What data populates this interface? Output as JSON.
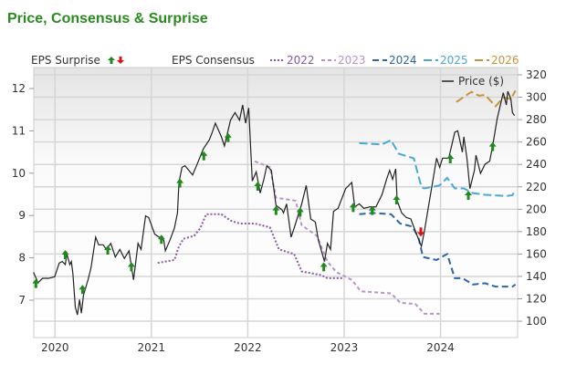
{
  "title": "Price, Consensus & Surprise",
  "chart_data": {
    "type": "line",
    "title": "Price, Consensus & Surprise",
    "legend": {
      "surprise_label": "EPS Surprise",
      "consensus_label": "EPS Consensus",
      "price_label": "Price ($)",
      "placement": "top"
    },
    "x_ticks": [
      "2020",
      "2021",
      "2022",
      "2023",
      "2024"
    ],
    "xlim": [
      2019.78,
      2024.8
    ],
    "left_axis": {
      "label": "",
      "ticks": [
        7,
        8,
        9,
        10,
        11,
        12
      ],
      "ylim": [
        6.35,
        12.5
      ]
    },
    "right_axis": {
      "label": "",
      "ticks": [
        100,
        120,
        140,
        160,
        180,
        200,
        220,
        240,
        260,
        280,
        300,
        320
      ],
      "ylim": [
        92,
        322
      ]
    },
    "grid": true,
    "price": {
      "name": "Price ($)",
      "color": "#222222",
      "points": [
        [
          2019.777,
          143.7
        ],
        [
          2019.824,
          134.3
        ],
        [
          2019.871,
          138.3
        ],
        [
          2019.934,
          138.3
        ],
        [
          2019.997,
          139.7
        ],
        [
          2020.044,
          151.9
        ],
        [
          2020.076,
          153.3
        ],
        [
          2020.107,
          150.5
        ],
        [
          2020.123,
          160.0
        ],
        [
          2020.154,
          150.5
        ],
        [
          2020.17,
          153.3
        ],
        [
          2020.186,
          142.4
        ],
        [
          2020.211,
          112.5
        ],
        [
          2020.233,
          105.7
        ],
        [
          2020.255,
          119.3
        ],
        [
          2020.274,
          107.1
        ],
        [
          2020.296,
          123.4
        ],
        [
          2020.343,
          137.0
        ],
        [
          2020.374,
          147.8
        ],
        [
          2020.422,
          175.0
        ],
        [
          2020.453,
          168.2
        ],
        [
          2020.5,
          168.2
        ],
        [
          2020.532,
          164.1
        ],
        [
          2020.579,
          169.5
        ],
        [
          2020.626,
          157.3
        ],
        [
          2020.673,
          164.1
        ],
        [
          2020.72,
          156.0
        ],
        [
          2020.768,
          162.8
        ],
        [
          2020.815,
          137.0
        ],
        [
          2020.862,
          169.5
        ],
        [
          2020.893,
          164.1
        ],
        [
          2020.94,
          194.0
        ],
        [
          2020.972,
          192.6
        ],
        [
          2021.035,
          177.7
        ],
        [
          2021.082,
          175.0
        ],
        [
          2021.129,
          172.3
        ],
        [
          2021.145,
          162.8
        ],
        [
          2021.192,
          172.3
        ],
        [
          2021.239,
          183.1
        ],
        [
          2021.271,
          196.7
        ],
        [
          2021.286,
          223.9
        ],
        [
          2021.318,
          237.4
        ],
        [
          2021.349,
          238.8
        ],
        [
          2021.428,
          230.6
        ],
        [
          2021.475,
          240.2
        ],
        [
          2021.538,
          253.7
        ],
        [
          2021.601,
          261.9
        ],
        [
          2021.632,
          268.7
        ],
        [
          2021.664,
          276.8
        ],
        [
          2021.727,
          264.6
        ],
        [
          2021.758,
          256.4
        ],
        [
          2021.821,
          279.5
        ],
        [
          2021.868,
          286.3
        ],
        [
          2021.915,
          279.5
        ],
        [
          2021.947,
          293.1
        ],
        [
          2021.978,
          276.8
        ],
        [
          2022.01,
          290.4
        ],
        [
          2022.047,
          225.2
        ],
        [
          2022.088,
          233.4
        ],
        [
          2022.129,
          214.4
        ],
        [
          2022.167,
          226.6
        ],
        [
          2022.198,
          238.8
        ],
        [
          2022.245,
          234.7
        ],
        [
          2022.293,
          203.5
        ],
        [
          2022.355,
          199.4
        ],
        [
          2022.371,
          196.7
        ],
        [
          2022.403,
          204.8
        ],
        [
          2022.45,
          175.0
        ],
        [
          2022.481,
          183.1
        ],
        [
          2022.56,
          204.8
        ],
        [
          2022.607,
          221.2
        ],
        [
          2022.654,
          191.3
        ],
        [
          2022.701,
          188.6
        ],
        [
          2022.733,
          172.3
        ],
        [
          2022.796,
          153.3
        ],
        [
          2022.827,
          169.5
        ],
        [
          2022.859,
          164.1
        ],
        [
          2022.89,
          198.1
        ],
        [
          2022.937,
          200.8
        ],
        [
          2023.016,
          218.4
        ],
        [
          2023.079,
          223.9
        ],
        [
          2023.11,
          202.1
        ],
        [
          2023.157,
          204.8
        ],
        [
          2023.204,
          200.8
        ],
        [
          2023.267,
          202.1
        ],
        [
          2023.33,
          202.1
        ],
        [
          2023.393,
          213.0
        ],
        [
          2023.44,
          226.6
        ],
        [
          2023.472,
          234.7
        ],
        [
          2023.503,
          226.6
        ],
        [
          2023.535,
          236.1
        ],
        [
          2023.55,
          207.6
        ],
        [
          2023.597,
          196.7
        ],
        [
          2023.645,
          192.6
        ],
        [
          2023.692,
          191.3
        ],
        [
          2023.739,
          180.4
        ],
        [
          2023.802,
          166.8
        ],
        [
          2023.833,
          180.4
        ],
        [
          2023.88,
          204.8
        ],
        [
          2023.928,
          229.3
        ],
        [
          2023.959,
          245.6
        ],
        [
          2023.991,
          237.4
        ],
        [
          2024.022,
          245.6
        ],
        [
          2024.085,
          245.6
        ],
        [
          2024.148,
          268.7
        ],
        [
          2024.179,
          270.0
        ],
        [
          2024.227,
          251.0
        ],
        [
          2024.242,
          264.6
        ],
        [
          2024.274,
          245.6
        ],
        [
          2024.305,
          218.4
        ],
        [
          2024.352,
          234.7
        ],
        [
          2024.368,
          248.3
        ],
        [
          2024.415,
          232.0
        ],
        [
          2024.462,
          240.2
        ],
        [
          2024.51,
          242.9
        ],
        [
          2024.541,
          256.4
        ],
        [
          2024.588,
          280.9
        ],
        [
          2024.651,
          304.0
        ],
        [
          2024.683,
          293.1
        ],
        [
          2024.698,
          305.3
        ],
        [
          2024.73,
          298.5
        ],
        [
          2024.746,
          286.3
        ],
        [
          2024.768,
          283.6
        ]
      ]
    },
    "consensus": [
      {
        "name": "2022",
        "color": "#8a5aa6",
        "dash": "2,2",
        "points": [
          [
            2021.066,
            7.88
          ],
          [
            2021.239,
            7.95
          ],
          [
            2021.286,
            8.27
          ],
          [
            2021.334,
            8.45
          ],
          [
            2021.444,
            8.52
          ],
          [
            2021.507,
            8.7
          ],
          [
            2021.569,
            9.03
          ],
          [
            2021.727,
            9.03
          ],
          [
            2021.821,
            8.88
          ],
          [
            2021.915,
            8.81
          ],
          [
            2022.073,
            8.81
          ],
          [
            2022.23,
            8.72
          ],
          [
            2022.324,
            8.2
          ],
          [
            2022.481,
            8.09
          ],
          [
            2022.56,
            7.68
          ],
          [
            2022.764,
            7.59
          ],
          [
            2022.827,
            7.52
          ],
          [
            2022.985,
            7.52
          ]
        ]
      },
      {
        "name": "2023",
        "color": "#b893c9",
        "dash": "4,3",
        "points": [
          [
            2022.073,
            10.28
          ],
          [
            2022.23,
            10.14
          ],
          [
            2022.293,
            9.42
          ],
          [
            2022.497,
            9.35
          ],
          [
            2022.56,
            8.77
          ],
          [
            2022.717,
            8.52
          ],
          [
            2022.827,
            7.91
          ],
          [
            2022.922,
            7.66
          ],
          [
            2023.079,
            7.48
          ],
          [
            2023.173,
            7.21
          ],
          [
            2023.488,
            7.16
          ],
          [
            2023.582,
            6.94
          ],
          [
            2023.739,
            6.91
          ],
          [
            2023.834,
            6.68
          ],
          [
            2023.991,
            6.68
          ]
        ]
      },
      {
        "name": "2024",
        "color": "#2f64a8",
        "dash": "7,4",
        "points": [
          [
            2023.157,
            9.03
          ],
          [
            2023.299,
            9.06
          ],
          [
            2023.487,
            9.03
          ],
          [
            2023.582,
            8.81
          ],
          [
            2023.707,
            8.74
          ],
          [
            2023.77,
            8.49
          ],
          [
            2023.818,
            8.02
          ],
          [
            2023.959,
            7.95
          ],
          [
            2024.069,
            8.09
          ],
          [
            2024.148,
            7.52
          ],
          [
            2024.227,
            7.52
          ],
          [
            2024.337,
            7.37
          ],
          [
            2024.462,
            7.4
          ],
          [
            2024.572,
            7.32
          ],
          [
            2024.746,
            7.32
          ],
          [
            2024.777,
            7.37
          ]
        ]
      },
      {
        "name": "2025",
        "color": "#4aa8d8",
        "dash": "9,4",
        "points": [
          [
            2023.157,
            10.71
          ],
          [
            2023.393,
            10.68
          ],
          [
            2023.487,
            10.78
          ],
          [
            2023.566,
            10.46
          ],
          [
            2023.723,
            10.35
          ],
          [
            2023.802,
            9.67
          ],
          [
            2023.833,
            9.64
          ],
          [
            2023.991,
            9.71
          ],
          [
            2024.069,
            9.89
          ],
          [
            2024.148,
            9.64
          ],
          [
            2024.242,
            9.64
          ],
          [
            2024.337,
            9.53
          ],
          [
            2024.462,
            9.49
          ],
          [
            2024.683,
            9.46
          ],
          [
            2024.746,
            9.48
          ],
          [
            2024.777,
            9.6
          ]
        ]
      },
      {
        "name": "2026",
        "color": "#c8923a",
        "dash": "9,4",
        "points": [
          [
            2024.164,
            11.68
          ],
          [
            2024.321,
            11.92
          ],
          [
            2024.399,
            11.83
          ],
          [
            2024.462,
            11.85
          ],
          [
            2024.572,
            11.58
          ],
          [
            2024.651,
            11.79
          ],
          [
            2024.73,
            11.75
          ],
          [
            2024.777,
            11.95
          ]
        ]
      }
    ],
    "surprises": [
      {
        "date": 2019.802,
        "price": 132.9,
        "dir": "up"
      },
      {
        "date": 2020.107,
        "price": 158.7,
        "dir": "up"
      },
      {
        "date": 2020.286,
        "price": 127.5,
        "dir": "up"
      },
      {
        "date": 2020.548,
        "price": 162.8,
        "dir": "up"
      },
      {
        "date": 2020.793,
        "price": 147.8,
        "dir": "up"
      },
      {
        "date": 2021.104,
        "price": 172.3,
        "dir": "up"
      },
      {
        "date": 2021.296,
        "price": 222.5,
        "dir": "up"
      },
      {
        "date": 2021.544,
        "price": 246.9,
        "dir": "up"
      },
      {
        "date": 2021.796,
        "price": 263.2,
        "dir": "up"
      },
      {
        "date": 2022.104,
        "price": 219.8,
        "dir": "up"
      },
      {
        "date": 2022.293,
        "price": 198.1,
        "dir": "up"
      },
      {
        "date": 2022.544,
        "price": 196.7,
        "dir": "up"
      },
      {
        "date": 2022.789,
        "price": 147.8,
        "dir": "up"
      },
      {
        "date": 2023.094,
        "price": 200.8,
        "dir": "up"
      },
      {
        "date": 2023.292,
        "price": 198.1,
        "dir": "up"
      },
      {
        "date": 2023.544,
        "price": 207.6,
        "dir": "up"
      },
      {
        "date": 2023.796,
        "price": 180.4,
        "dir": "down"
      },
      {
        "date": 2024.101,
        "price": 244.2,
        "dir": "up"
      },
      {
        "date": 2024.289,
        "price": 211.6,
        "dir": "up"
      },
      {
        "date": 2024.541,
        "price": 255.1,
        "dir": "up"
      }
    ],
    "colors": {
      "up": "#1e8a1e",
      "down": "#e01010",
      "title": "#2a8a1f"
    }
  }
}
